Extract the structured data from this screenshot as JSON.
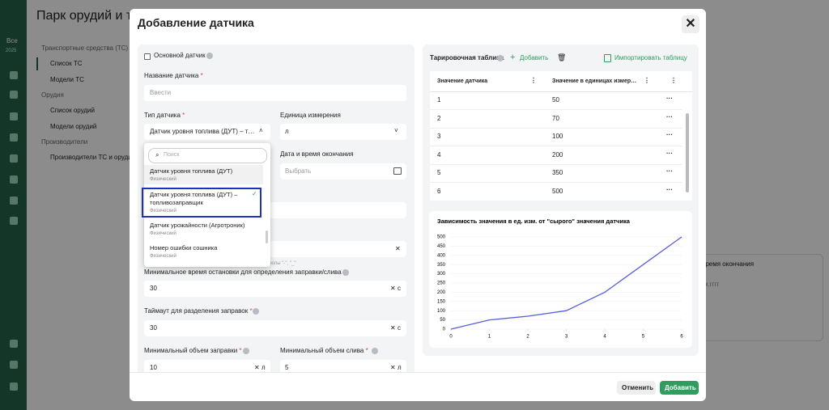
{
  "background": {
    "page_title": "Парк орудий и техники",
    "sidebar": {
      "all": "Все",
      "year": "2025"
    },
    "nav": [
      {
        "title": "Транспортные средства (ТС)",
        "items": [
          "Список ТС",
          "Модели ТС"
        ]
      },
      {
        "title": "Орудия",
        "items": [
          "Список орудий",
          "Модели орудий"
        ]
      },
      {
        "title": "Производители",
        "items": [
          "Производители ТС и орудий"
        ]
      }
    ],
    "right_card": {
      "column": "Время окончания",
      "placeholder": "дд.мм.гггг"
    }
  },
  "modal": {
    "title": "Добавление датчика",
    "required_mark": "*",
    "main_sensor": "Основной датчик",
    "name": {
      "label": "Название датчика",
      "placeholder": "Ввести"
    },
    "type": {
      "label": "Тип датчика",
      "value": "Датчик уровня топлива (ДУТ) – топливозаправщик"
    },
    "unit": {
      "label": "Единица измерения",
      "value": "л"
    },
    "end_date": {
      "label": "Дата и время окончания",
      "placeholder": "Выбрать"
    },
    "hint": "символы \"-\", \"_\"",
    "min_stop": {
      "label": "Минимальное время остановки для определения заправки/слива",
      "value": "30",
      "unit": "с"
    },
    "timeout": {
      "label": "Таймаут для разделения заправок",
      "value": "30",
      "unit": "с"
    },
    "min_refuel": {
      "label": "Минимальный объем заправки",
      "value": "10",
      "unit": "л"
    },
    "min_drain": {
      "label": "Минимальный объем слива",
      "value": "5",
      "unit": "л"
    },
    "dropdown": {
      "search": "Поиск",
      "options": [
        {
          "title": "Датчик уровня топлива (ДУТ)",
          "subtitle": "Физический"
        },
        {
          "title": "Датчик уровня топлива (ДУТ) – топливозаправщик",
          "subtitle": "Физический"
        },
        {
          "title": "Датчик урожайности (Агротроник)",
          "subtitle": "Физический"
        },
        {
          "title": "Номер ошибки сошника",
          "subtitle": "Физический"
        }
      ]
    },
    "calibration": {
      "title": "Тарировочная таблица",
      "add": "Добавить",
      "import": "Импортировать таблицу",
      "columns": [
        "Значение датчика",
        "Значение в единицах измерения"
      ],
      "rows": [
        [
          1,
          50
        ],
        [
          2,
          70
        ],
        [
          3,
          100
        ],
        [
          4,
          200
        ],
        [
          5,
          350
        ],
        [
          6,
          500
        ]
      ]
    },
    "footer": {
      "cancel": "Отменить",
      "submit": "Добавить"
    }
  },
  "chart_data": {
    "type": "line",
    "title": "Зависимость значения в ед. изм. от \"сырого\" значения датчика",
    "x": [
      0,
      1,
      2,
      3,
      4,
      5,
      6
    ],
    "values": [
      0,
      50,
      70,
      100,
      200,
      350,
      500
    ],
    "color": "#5560d8",
    "xlim": [
      0,
      6
    ],
    "xticks": [
      0,
      1,
      2,
      3,
      4,
      5,
      6
    ],
    "ylim": [
      0,
      500
    ],
    "yticks": [
      0,
      50,
      100,
      150,
      200,
      250,
      300,
      350,
      400,
      450,
      500
    ],
    "grid": true
  }
}
